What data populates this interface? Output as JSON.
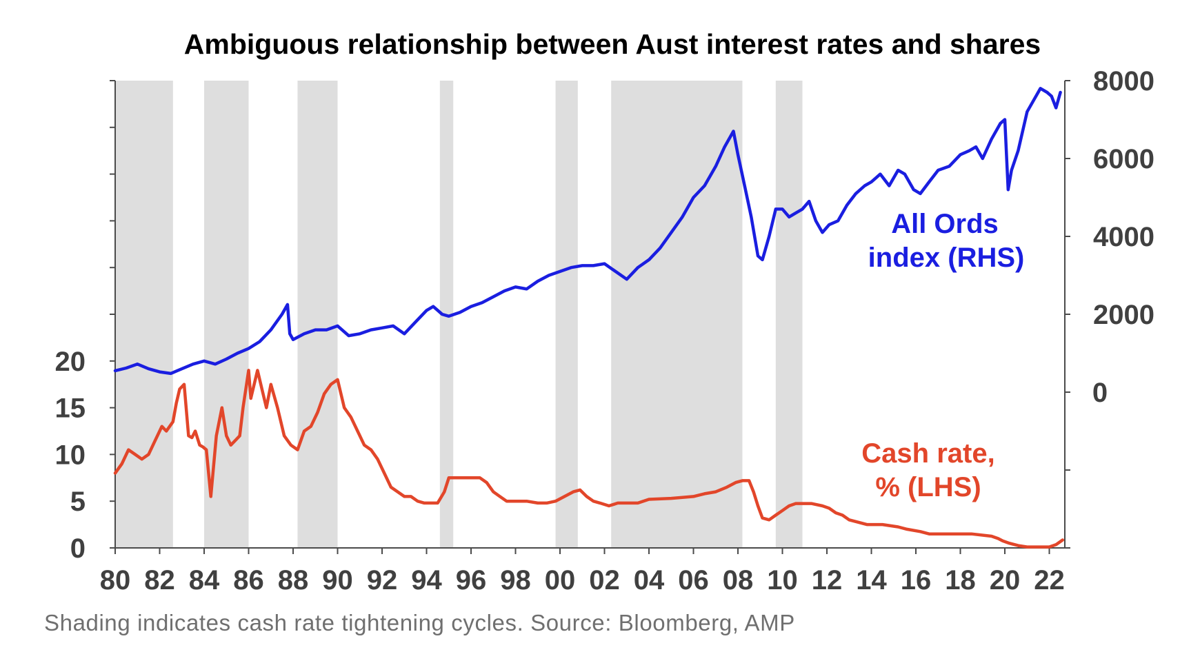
{
  "chart_data": {
    "type": "line",
    "title": "Ambiguous relationship between Aust interest rates and shares",
    "x_tick_labels": [
      "80",
      "82",
      "84",
      "86",
      "88",
      "90",
      "92",
      "94",
      "96",
      "98",
      "00",
      "02",
      "04",
      "06",
      "08",
      "10",
      "12",
      "14",
      "16",
      "18",
      "20",
      "22"
    ],
    "x_range": [
      1980,
      2022.8
    ],
    "left_axis": {
      "ticks": [
        0,
        5,
        10,
        15,
        20
      ],
      "range": [
        0,
        50
      ]
    },
    "right_axis": {
      "ticks": [
        0,
        2000,
        4000,
        6000,
        8000
      ],
      "range": [
        -4000,
        8000
      ]
    },
    "grid": false,
    "shaded_periods": [
      [
        1980.0,
        1982.6
      ],
      [
        1984.0,
        1986.0
      ],
      [
        1988.2,
        1990.0
      ],
      [
        1994.6,
        1995.2
      ],
      [
        1999.8,
        2000.8
      ],
      [
        2002.3,
        2008.2
      ],
      [
        2009.7,
        2010.9
      ]
    ],
    "series": [
      {
        "name": "Cash rate, % (LHS)",
        "axis": "left",
        "color": "#e2462a",
        "x": [
          1980.0,
          1980.3,
          1980.6,
          1980.9,
          1981.2,
          1981.5,
          1981.8,
          1982.1,
          1982.3,
          1982.6,
          1982.75,
          1982.9,
          1983.1,
          1983.3,
          1983.45,
          1983.6,
          1983.8,
          1983.95,
          1984.1,
          1984.3,
          1984.55,
          1984.8,
          1985.0,
          1985.2,
          1985.4,
          1985.6,
          1985.75,
          1986.0,
          1986.1,
          1986.4,
          1986.6,
          1986.8,
          1987.0,
          1987.3,
          1987.6,
          1987.9,
          1988.2,
          1988.5,
          1988.8,
          1989.1,
          1989.4,
          1989.7,
          1990.0,
          1990.3,
          1990.6,
          1990.9,
          1991.2,
          1991.5,
          1991.8,
          1992.1,
          1992.4,
          1992.7,
          1993.0,
          1993.3,
          1993.6,
          1993.9,
          1994.2,
          1994.5,
          1994.8,
          1995.0,
          1995.5,
          1996.0,
          1996.4,
          1996.7,
          1997.0,
          1997.3,
          1997.6,
          1998.0,
          1998.5,
          1999.0,
          1999.4,
          1999.8,
          2000.2,
          2000.6,
          2000.9,
          2001.2,
          2001.5,
          2001.8,
          2002.2,
          2002.6,
          2003.0,
          2003.5,
          2004.0,
          2005.0,
          2006.0,
          2006.5,
          2007.0,
          2007.5,
          2007.9,
          2008.2,
          2008.5,
          2008.7,
          2008.9,
          2009.1,
          2009.4,
          2009.7,
          2010.0,
          2010.3,
          2010.6,
          2010.9,
          2011.3,
          2011.8,
          2012.1,
          2012.4,
          2012.7,
          2013.0,
          2013.4,
          2013.8,
          2014.5,
          2015.2,
          2015.6,
          2016.2,
          2016.6,
          2017.5,
          2018.5,
          2019.4,
          2019.7,
          2019.9,
          2020.2,
          2020.6,
          2021.0,
          2021.5,
          2022.0,
          2022.3,
          2022.6
        ],
        "y": [
          8.0,
          9.0,
          10.5,
          10.0,
          9.5,
          10.0,
          11.5,
          13.0,
          12.5,
          13.5,
          15.5,
          17.0,
          17.5,
          12.0,
          11.8,
          12.5,
          11.0,
          10.8,
          10.5,
          5.5,
          12.0,
          15.0,
          12.0,
          11.0,
          11.5,
          12.0,
          15.0,
          19.0,
          16.0,
          19.0,
          17.0,
          15.0,
          17.5,
          15.0,
          12.0,
          11.0,
          10.5,
          12.5,
          13.0,
          14.5,
          16.5,
          17.5,
          18.0,
          15.0,
          14.0,
          12.5,
          11.0,
          10.5,
          9.5,
          8.0,
          6.5,
          6.0,
          5.5,
          5.5,
          5.0,
          4.8,
          4.8,
          4.8,
          6.0,
          7.5,
          7.5,
          7.5,
          7.5,
          7.0,
          6.0,
          5.5,
          5.0,
          5.0,
          5.0,
          4.8,
          4.8,
          5.0,
          5.5,
          6.0,
          6.2,
          5.5,
          5.0,
          4.8,
          4.5,
          4.8,
          4.8,
          4.8,
          5.2,
          5.3,
          5.5,
          5.8,
          6.0,
          6.5,
          7.0,
          7.2,
          7.2,
          6.0,
          4.5,
          3.2,
          3.0,
          3.5,
          4.0,
          4.5,
          4.75,
          4.75,
          4.75,
          4.5,
          4.25,
          3.75,
          3.5,
          3.0,
          2.75,
          2.5,
          2.5,
          2.25,
          2.0,
          1.75,
          1.5,
          1.5,
          1.5,
          1.25,
          1.0,
          0.75,
          0.5,
          0.25,
          0.1,
          0.1,
          0.1,
          0.35,
          0.85
        ]
      },
      {
        "name": "All Ords index (RHS)",
        "axis": "right",
        "color": "#1a1ee0",
        "x": [
          1980.0,
          1980.5,
          1981.0,
          1981.5,
          1982.0,
          1982.5,
          1983.0,
          1983.5,
          1984.0,
          1984.5,
          1985.0,
          1985.5,
          1986.0,
          1986.5,
          1987.0,
          1987.5,
          1987.75,
          1987.85,
          1988.0,
          1988.5,
          1989.0,
          1989.5,
          1990.0,
          1990.5,
          1991.0,
          1991.5,
          1992.0,
          1992.5,
          1993.0,
          1993.5,
          1994.0,
          1994.3,
          1994.7,
          1995.0,
          1995.5,
          1996.0,
          1996.5,
          1997.0,
          1997.5,
          1998.0,
          1998.5,
          1999.0,
          1999.5,
          2000.0,
          2000.5,
          2001.0,
          2001.5,
          2002.0,
          2002.5,
          2003.0,
          2003.5,
          2004.0,
          2004.5,
          2005.0,
          2005.5,
          2006.0,
          2006.5,
          2007.0,
          2007.4,
          2007.8,
          2008.0,
          2008.3,
          2008.6,
          2008.9,
          2009.1,
          2009.4,
          2009.7,
          2010.0,
          2010.3,
          2010.6,
          2010.9,
          2011.2,
          2011.5,
          2011.8,
          2012.1,
          2012.5,
          2012.9,
          2013.3,
          2013.7,
          2014.0,
          2014.4,
          2014.8,
          2015.2,
          2015.5,
          2015.9,
          2016.2,
          2016.6,
          2017.0,
          2017.5,
          2018.0,
          2018.4,
          2018.7,
          2019.0,
          2019.4,
          2019.8,
          2020.0,
          2020.15,
          2020.3,
          2020.6,
          2021.0,
          2021.3,
          2021.6,
          2021.9,
          2022.1,
          2022.3,
          2022.5
        ],
        "y": [
          550,
          620,
          720,
          600,
          520,
          480,
          600,
          720,
          800,
          720,
          850,
          1000,
          1120,
          1300,
          1600,
          2000,
          2250,
          1500,
          1350,
          1500,
          1600,
          1600,
          1700,
          1450,
          1500,
          1600,
          1650,
          1700,
          1500,
          1800,
          2100,
          2200,
          2000,
          1950,
          2050,
          2200,
          2300,
          2450,
          2600,
          2700,
          2650,
          2850,
          3000,
          3100,
          3200,
          3250,
          3250,
          3300,
          3100,
          2900,
          3200,
          3400,
          3700,
          4100,
          4500,
          5000,
          5300,
          5800,
          6300,
          6700,
          6100,
          5300,
          4500,
          3500,
          3400,
          4000,
          4700,
          4700,
          4500,
          4600,
          4700,
          4900,
          4400,
          4100,
          4300,
          4400,
          4800,
          5100,
          5300,
          5400,
          5600,
          5300,
          5700,
          5600,
          5200,
          5100,
          5400,
          5700,
          5800,
          6100,
          6200,
          6300,
          6000,
          6500,
          6900,
          7000,
          5200,
          5700,
          6200,
          7200,
          7500,
          7800,
          7700,
          7600,
          7300,
          7700
        ]
      }
    ]
  },
  "series_labels": {
    "all_ords": [
      "All Ords",
      "index (RHS)"
    ],
    "cash_rate": [
      "Cash rate,",
      "% (LHS)"
    ]
  },
  "footnote": "Shading indicates cash rate tightening cycles. Source: Bloomberg, AMP",
  "colors": {
    "shading": "#dedede",
    "axis": "#4a4a4a"
  }
}
